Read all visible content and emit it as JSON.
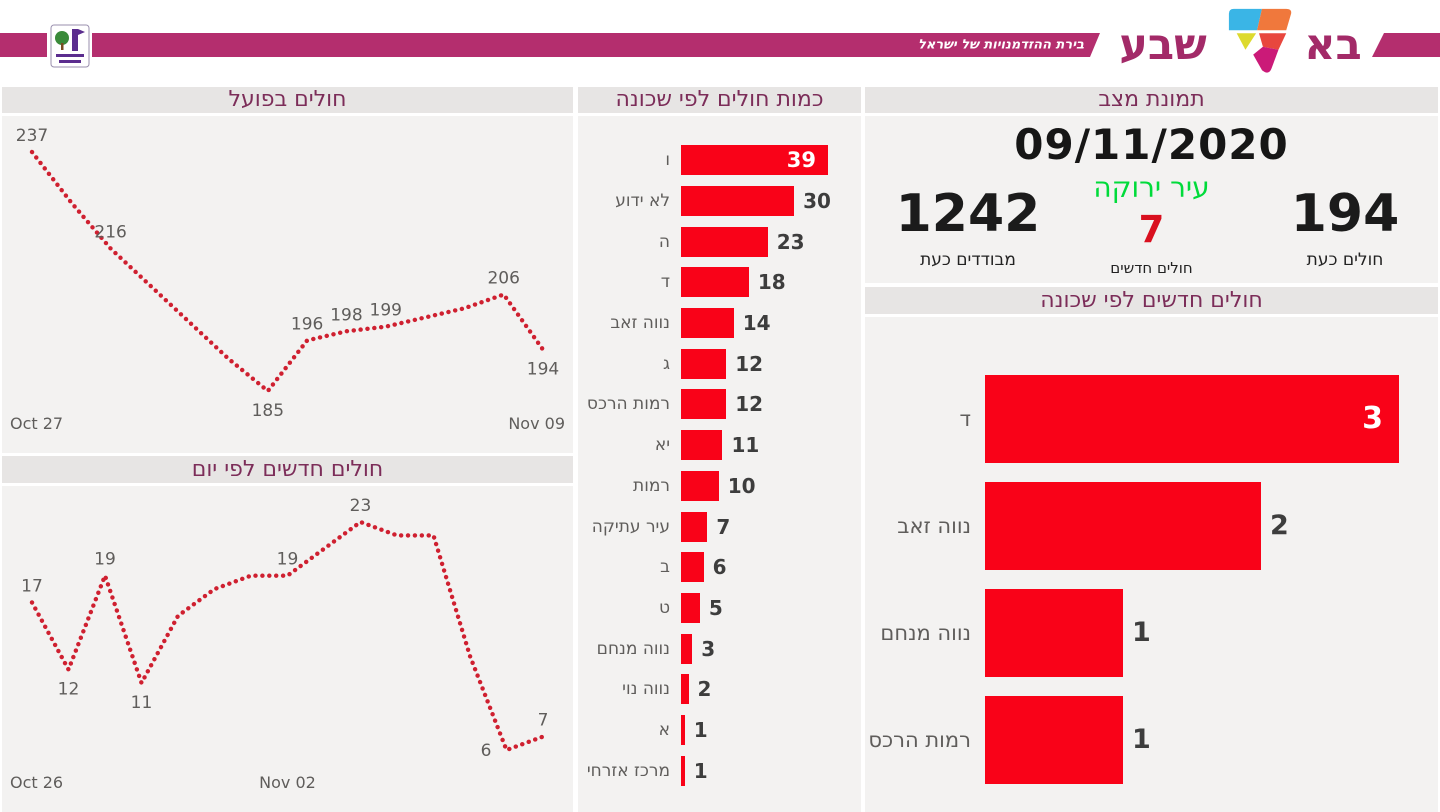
{
  "banner": {
    "logo_ba": "בא",
    "logo_sheva": "שבע",
    "tagline": "בירת ההזדמנויות של ישראל",
    "seven_colors": {
      "cyan": "#3ab5e6",
      "orange": "#f0783c",
      "yellow": "#ddda2e",
      "red": "#e8473e",
      "magenta": "#cb1a78"
    }
  },
  "theme": {
    "stripe_magenta": "#b42e6e",
    "title_color": "#7c2d59",
    "bar_red": "#f90218",
    "line_red": "#cf2030",
    "status_green": "#00db3a",
    "status_red": "#d9101f",
    "panel_header_bg": "#e7e5e4",
    "panel_body_bg": "#f3f2f1",
    "label_gray": "#5f5d5b",
    "value_dark": "#3d3d3d"
  },
  "status_panel": {
    "title": "תמונת מצב",
    "date": "09/11/2020",
    "city_status": "עיר ירוקה",
    "metrics": {
      "isolated_value": "1242",
      "isolated_label": "מבודדים כעת",
      "new_value": "7",
      "new_label": "חולים חדשים",
      "current_value": "194",
      "current_label": "חולים כעת"
    }
  },
  "chart_data": [
    {
      "id": "active-cases-trend",
      "type": "line",
      "title": "חולים בפועל",
      "x_range": [
        "Oct 27",
        "Nov 09"
      ],
      "x_ticks": [
        {
          "label": "Oct 27",
          "align": "left"
        },
        {
          "label": "Nov 09",
          "align": "right"
        }
      ],
      "ylim": [
        185,
        237
      ],
      "grid": false,
      "legend": "none",
      "unlabeled_values_estimated": true,
      "points": [
        {
          "value": 237,
          "label": "237",
          "pos": "above"
        },
        {
          "value": 226
        },
        {
          "value": 216,
          "label": "216",
          "pos": "above"
        },
        {
          "value": 208
        },
        {
          "value": 200
        },
        {
          "value": 192
        },
        {
          "value": 185,
          "label": "185",
          "pos": "below"
        },
        {
          "value": 196,
          "label": "196",
          "pos": "above"
        },
        {
          "value": 198,
          "label": "198",
          "pos": "above"
        },
        {
          "value": 199,
          "label": "199",
          "pos": "above"
        },
        {
          "value": 201
        },
        {
          "value": 203
        },
        {
          "value": 206,
          "label": "206",
          "pos": "above"
        },
        {
          "value": 194,
          "label": "194",
          "pos": "below"
        }
      ]
    },
    {
      "id": "new-cases-by-day",
      "type": "line",
      "title": "חולים חדשים לפי יום",
      "x_range": [
        "Oct 26",
        "Nov 09"
      ],
      "x_ticks": [
        {
          "label": "Oct 26",
          "align": "left"
        },
        {
          "label": "Nov 02",
          "align": "center"
        }
      ],
      "ylim": [
        6,
        23
      ],
      "grid": false,
      "legend": "none",
      "unlabeled_values_estimated": true,
      "points": [
        {
          "value": 17,
          "label": "17",
          "pos": "above"
        },
        {
          "value": 12,
          "label": "12",
          "pos": "below"
        },
        {
          "value": 19,
          "label": "19",
          "pos": "above"
        },
        {
          "value": 11,
          "label": "11",
          "pos": "below"
        },
        {
          "value": 16
        },
        {
          "value": 18
        },
        {
          "value": 19
        },
        {
          "value": 19,
          "label": "19",
          "pos": "above"
        },
        {
          "value": 21
        },
        {
          "value": 23,
          "label": "23",
          "pos": "above"
        },
        {
          "value": 22
        },
        {
          "value": 22
        },
        {
          "value": 13
        },
        {
          "value": 6,
          "label": "6",
          "pos": "left"
        },
        {
          "value": 7,
          "label": "7",
          "pos": "above"
        }
      ]
    },
    {
      "id": "cases-by-neighborhood",
      "type": "bar",
      "orientation": "horizontal",
      "title": "כמות חולים לפי שכונה",
      "xlim": [
        0,
        47
      ],
      "grid": false,
      "legend": "none",
      "bars": [
        {
          "category": "ו",
          "value": 39,
          "label_inside": true
        },
        {
          "category": "לא ידוע",
          "value": 30
        },
        {
          "category": "ה",
          "value": 23
        },
        {
          "category": "ד",
          "value": 18
        },
        {
          "category": "נווה זאב",
          "value": 14
        },
        {
          "category": "ג",
          "value": 12
        },
        {
          "category": "רמות הרכס",
          "value": 12
        },
        {
          "category": "יא",
          "value": 11
        },
        {
          "category": "רמות",
          "value": 10
        },
        {
          "category": "עיר עתיקה",
          "value": 7
        },
        {
          "category": "ב",
          "value": 6
        },
        {
          "category": "ט",
          "value": 5
        },
        {
          "category": "נווה מנחם",
          "value": 3
        },
        {
          "category": "נווה נוי",
          "value": 2
        },
        {
          "category": "א",
          "value": 1
        },
        {
          "category": "מרכז אזרחי",
          "value": 1
        }
      ]
    },
    {
      "id": "new-cases-by-neighborhood",
      "type": "bar",
      "orientation": "horizontal",
      "title": "חולים חדשים לפי שכונה",
      "xlim": [
        0,
        3.3
      ],
      "grid": false,
      "legend": "none",
      "bars": [
        {
          "category": "ד",
          "value": 3,
          "label_inside": true
        },
        {
          "category": "נווה זאב",
          "value": 2
        },
        {
          "category": "נווה מנחם",
          "value": 1
        },
        {
          "category": "רמות הרכס",
          "value": 1
        }
      ]
    }
  ]
}
